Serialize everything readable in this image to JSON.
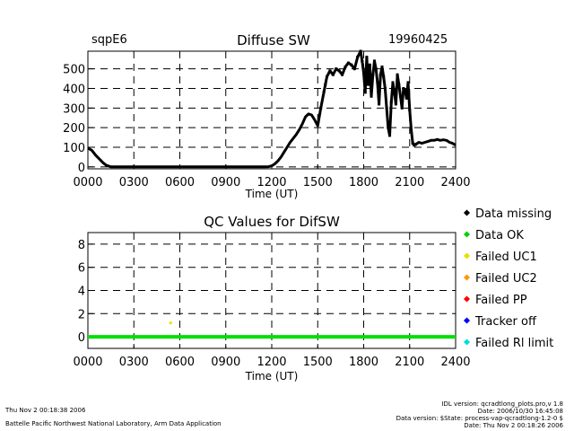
{
  "header": {
    "station": "sqpE6",
    "date": "19960425"
  },
  "chart_data": [
    {
      "type": "scatter",
      "title": "Diffuse SW",
      "xlabel": "Time (UT)",
      "ylabel": "",
      "x_ticks": [
        "0000",
        "0300",
        "0600",
        "0900",
        "1200",
        "1500",
        "1800",
        "2100",
        "2400"
      ],
      "y_ticks": [
        0,
        100,
        200,
        300,
        400,
        500
      ],
      "xlim": [
        0,
        24
      ],
      "ylim": [
        -10,
        590
      ],
      "grid": "dashed",
      "series": [
        {
          "name": "Diffuse SW",
          "color": "#000000",
          "x": [
            0,
            0.25,
            0.5,
            0.75,
            1,
            1.2,
            1.5,
            2,
            3,
            4,
            5,
            6,
            7,
            8,
            9,
            10,
            11,
            11.5,
            11.8,
            12,
            12.2,
            12.4,
            12.6,
            12.8,
            13,
            13.2,
            13.4,
            13.6,
            13.8,
            14,
            14.2,
            14.4,
            14.6,
            14.8,
            15,
            15.2,
            15.4,
            15.5,
            15.6,
            15.8,
            16,
            16.2,
            16.4,
            16.6,
            16.8,
            17,
            17.2,
            17.4,
            17.6,
            17.8,
            17.9,
            18,
            18.1,
            18.2,
            18.3,
            18.4,
            18.5,
            18.6,
            18.7,
            18.8,
            18.9,
            19,
            19.1,
            19.2,
            19.3,
            19.4,
            19.5,
            19.6,
            19.7,
            19.8,
            19.9,
            20,
            20.1,
            20.2,
            20.3,
            20.4,
            20.5,
            20.6,
            20.7,
            20.8,
            20.9,
            21,
            21.1,
            21.2,
            21.3,
            21.4,
            21.6,
            21.8,
            22,
            22.2,
            22.4,
            22.6,
            22.8,
            23,
            23.2,
            23.4,
            23.6,
            23.8,
            24
          ],
          "values": [
            95,
            85,
            60,
            40,
            20,
            8,
            0,
            0,
            0,
            0,
            0,
            0,
            0,
            0,
            0,
            0,
            0,
            0,
            1,
            5,
            15,
            30,
            50,
            75,
            100,
            125,
            145,
            165,
            190,
            220,
            255,
            270,
            265,
            240,
            210,
            300,
            380,
            420,
            460,
            490,
            470,
            500,
            490,
            470,
            510,
            530,
            520,
            500,
            560,
            590,
            540,
            480,
            380,
            560,
            420,
            520,
            360,
            470,
            540,
            500,
            430,
            320,
            470,
            510,
            460,
            400,
            300,
            200,
            160,
            330,
            430,
            380,
            320,
            470,
            420,
            360,
            300,
            400,
            390,
            350,
            430,
            290,
            190,
            120,
            110,
            115,
            125,
            120,
            125,
            130,
            135,
            135,
            140,
            135,
            138,
            135,
            125,
            120,
            110
          ]
        }
      ]
    },
    {
      "type": "scatter",
      "title": "QC Values for DifSW",
      "xlabel": "Time (UT)",
      "ylabel": "",
      "x_ticks": [
        "0000",
        "0300",
        "0600",
        "0900",
        "1200",
        "1500",
        "1800",
        "2100",
        "2400"
      ],
      "y_ticks": [
        0,
        2,
        4,
        6,
        8
      ],
      "xlim": [
        0,
        24
      ],
      "ylim": [
        -1,
        9
      ],
      "grid": "dashed",
      "series": [
        {
          "name": "Data OK",
          "color": "#00e000",
          "x": [
            0,
            24
          ],
          "values": [
            0,
            0
          ]
        },
        {
          "name": "Failed UC1",
          "color": "#f0e000",
          "x": [
            5.4
          ],
          "values": [
            1.2
          ]
        }
      ],
      "legend": {
        "placement": "right",
        "entries": [
          {
            "label": "Data missing",
            "color": "#000000"
          },
          {
            "label": "Data OK",
            "color": "#00d000"
          },
          {
            "label": "Failed UC1",
            "color": "#e8e000"
          },
          {
            "label": "Failed UC2",
            "color": "#ff9900"
          },
          {
            "label": "Failed PP",
            "color": "#ff0000"
          },
          {
            "label": "Tracker off",
            "color": "#0000ff"
          },
          {
            "label": "Failed Rl limit",
            "color": "#00dddd"
          }
        ]
      }
    }
  ],
  "footer": {
    "timestamp": "Thu Nov  2 00:18:38 2006",
    "lab": "Battelle Pacific Northwest National Laboratory, Arm Data Application",
    "idl_version": "IDL version: qcradtlong_plots.pro,v 1.8",
    "file_date": "Date: 2006/10/30 16:45:08",
    "data_version": "Data version: $State: process-vap-qcradtlong-1.2-0 $",
    "run_date": "Date: Thu Nov  2 00:18:26 2006"
  }
}
